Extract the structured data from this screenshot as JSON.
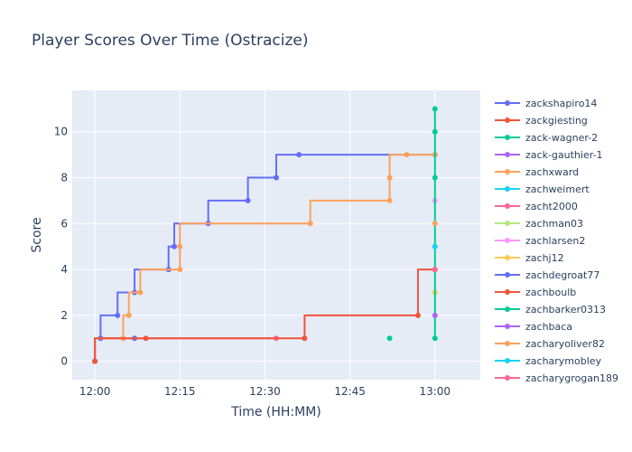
{
  "chart_data": {
    "type": "line",
    "line_shape": "step",
    "title": "Player Scores Over Time (Ostracize)",
    "xlabel": "Time (HH:MM)",
    "ylabel": "Score",
    "x_ticks": [
      "12:00",
      "12:15",
      "12:30",
      "12:45",
      "13:00"
    ],
    "y_ticks": [
      0,
      2,
      4,
      6,
      8,
      10
    ],
    "xlim": [
      "11:56",
      "13:08"
    ],
    "ylim": [
      -0.8,
      11.8
    ],
    "background": "#e5ecf6",
    "legend_position": "right",
    "series": [
      {
        "name": "zackshapiro14",
        "color": "#636efa",
        "points": [
          [
            "12:00",
            0
          ],
          [
            "12:01",
            1
          ],
          [
            "12:04",
            2
          ],
          [
            "12:07",
            3
          ],
          [
            "12:13",
            4
          ],
          [
            "12:14",
            5
          ],
          [
            "12:20",
            6
          ],
          [
            "12:27",
            7
          ],
          [
            "12:32",
            8
          ],
          [
            "12:36",
            9
          ],
          [
            "13:00",
            9
          ]
        ]
      },
      {
        "name": "zackgiesting",
        "color": "#ef553b",
        "points": [
          [
            "12:09",
            1
          ]
        ]
      },
      {
        "name": "zack-wagner-2",
        "color": "#00cc96",
        "points": [
          [
            "12:52",
            1
          ]
        ]
      },
      {
        "name": "zack-gauthier-1",
        "color": "#ab63fa",
        "points": [
          [
            "13:00",
            9
          ]
        ]
      },
      {
        "name": "zachxward",
        "color": "#ffa15a",
        "points": [
          [
            "12:00",
            0
          ],
          [
            "12:05",
            1
          ],
          [
            "12:06",
            2
          ],
          [
            "12:08",
            3
          ],
          [
            "12:15",
            4
          ],
          [
            "12:15",
            5
          ],
          [
            "12:38",
            6
          ],
          [
            "12:52",
            7
          ],
          [
            "12:52",
            8
          ],
          [
            "12:55",
            9
          ],
          [
            "13:00",
            9
          ]
        ]
      },
      {
        "name": "zachweimert",
        "color": "#19d3f3",
        "points": [
          [
            "13:00",
            5
          ]
        ]
      },
      {
        "name": "zacht2000",
        "color": "#ff6692",
        "points": [
          [
            "12:00",
            0
          ],
          [
            "12:32",
            1
          ]
        ]
      },
      {
        "name": "zachman03",
        "color": "#b6e880",
        "points": [
          [
            "13:00",
            3
          ]
        ]
      },
      {
        "name": "zachlarsen2",
        "color": "#ff97ff",
        "points": [
          [
            "13:00",
            7
          ]
        ]
      },
      {
        "name": "zachj12",
        "color": "#fecb52",
        "points": [
          [
            "13:00",
            3
          ]
        ]
      },
      {
        "name": "zachdegroat77",
        "color": "#636efa",
        "points": [
          [
            "12:07",
            1
          ]
        ]
      },
      {
        "name": "zachboulb",
        "color": "#ef553b",
        "points": [
          [
            "12:00",
            0
          ],
          [
            "12:37",
            1
          ],
          [
            "12:57",
            2
          ],
          [
            "13:00",
            4
          ]
        ]
      },
      {
        "name": "zachbarker0313",
        "color": "#00cc96",
        "points": [
          [
            "13:00",
            1
          ],
          [
            "13:00",
            8
          ],
          [
            "13:00",
            10
          ],
          [
            "13:00",
            11
          ]
        ]
      },
      {
        "name": "zachbaca",
        "color": "#ab63fa",
        "points": [
          [
            "13:00",
            2
          ]
        ]
      },
      {
        "name": "zacharyoliver82",
        "color": "#ffa15a",
        "points": [
          [
            "13:00",
            6
          ]
        ]
      },
      {
        "name": "zacharymobley",
        "color": "#19d3f3",
        "points": [
          [
            "13:00",
            5
          ]
        ]
      },
      {
        "name": "zacharygrogan189",
        "color": "#ff6692",
        "points": [
          [
            "13:00",
            4
          ]
        ]
      }
    ]
  }
}
